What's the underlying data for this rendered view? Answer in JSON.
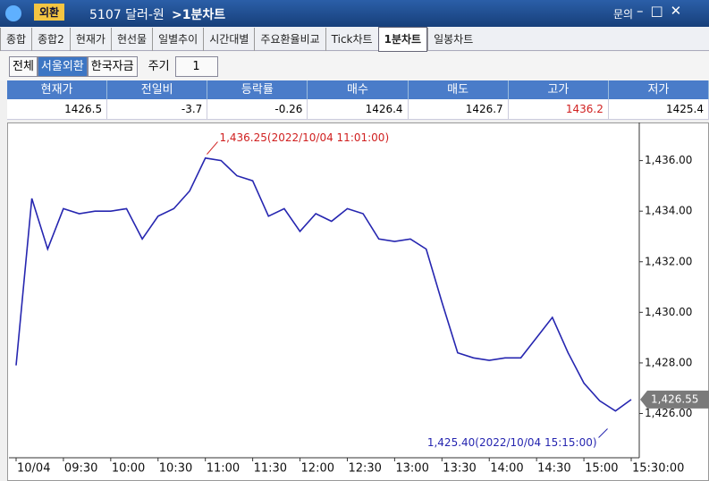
{
  "window": {
    "app": "외환",
    "code": "5107 달러-원",
    "screen": ">1분차트",
    "menu": "문의"
  },
  "tabs": [
    "종합",
    "종합2",
    "현재가",
    "현선물",
    "일별추이",
    "시간대별",
    "주요환율비교",
    "Tick차트",
    "1분차트",
    "일봉차트"
  ],
  "active_tab": "1분차트",
  "toolbar": {
    "buttons": [
      "전체",
      "서울외환",
      "한국자금"
    ],
    "active": "서울외환",
    "period_label": "주기",
    "period": "1"
  },
  "quote_table": {
    "headers": [
      "현재가",
      "전일비",
      "등락률",
      "매수",
      "매도",
      "고가",
      "저가"
    ],
    "values": [
      "1426.5",
      "-3.7",
      "-0.26",
      "1426.4",
      "1426.7",
      "1436.2",
      "1425.4"
    ]
  },
  "chart_data": {
    "type": "line",
    "x": [
      "09:00",
      "09:10",
      "09:20",
      "09:30",
      "09:40",
      "09:50",
      "10:00",
      "10:10",
      "10:20",
      "10:30",
      "10:40",
      "10:50",
      "11:00",
      "11:10",
      "11:20",
      "11:30",
      "11:40",
      "11:50",
      "12:00",
      "12:10",
      "12:20",
      "12:30",
      "12:40",
      "12:50",
      "13:00",
      "13:10",
      "13:20",
      "13:30",
      "13:40",
      "13:50",
      "14:00",
      "14:10",
      "14:20",
      "14:30",
      "14:40",
      "14:50",
      "15:00",
      "15:10",
      "15:20",
      "15:30"
    ],
    "series": [
      {
        "name": "달러-원",
        "color": "#2626b0",
        "values": [
          1427.9,
          1434.5,
          1432.5,
          1434.1,
          1433.9,
          1434.0,
          1434.0,
          1434.1,
          1432.9,
          1433.8,
          1434.1,
          1434.8,
          1436.1,
          1436.0,
          1435.4,
          1435.2,
          1433.8,
          1434.1,
          1433.2,
          1433.9,
          1433.6,
          1434.1,
          1433.9,
          1432.9,
          1432.8,
          1432.9,
          1432.5,
          1430.4,
          1428.4,
          1428.2,
          1428.1,
          1428.2,
          1428.2,
          1429.0,
          1429.8,
          1428.4,
          1427.2,
          1426.5,
          1426.1,
          1426.55
        ]
      }
    ],
    "xlim": [
      "09:00",
      "15:30"
    ],
    "xticks": [
      {
        "value": "09:00",
        "label": "10/04"
      },
      "09:30",
      "10:00",
      "10:30",
      "11:00",
      "11:30",
      "12:00",
      "12:30",
      "13:00",
      "13:30",
      "14:00",
      "14:30",
      "15:00",
      {
        "value": "15:30",
        "label": "15:30:00"
      }
    ],
    "ylim": [
      1424.25,
      1437.4
    ],
    "yticks": [
      {
        "value": 1426,
        "label": "1,426.00"
      },
      {
        "value": 1428,
        "label": "1,428.00"
      },
      {
        "value": 1430,
        "label": "1,430.00"
      },
      {
        "value": 1432,
        "label": "1,432.00"
      },
      {
        "value": 1434,
        "label": "1,434.00"
      },
      {
        "value": 1436,
        "label": "1,436.00"
      }
    ],
    "annotations": [
      {
        "text": "1,436.25(2022/10/04 11:01:00)",
        "value": 1436.25,
        "x": "11:01",
        "color": "#d02020"
      },
      {
        "text": "1,425.40(2022/10/04 15:15:00)",
        "value": 1425.4,
        "x": "15:15",
        "color": "#2626b0"
      }
    ],
    "last_price": {
      "value": 1426.55,
      "label": "1,426.55"
    }
  }
}
